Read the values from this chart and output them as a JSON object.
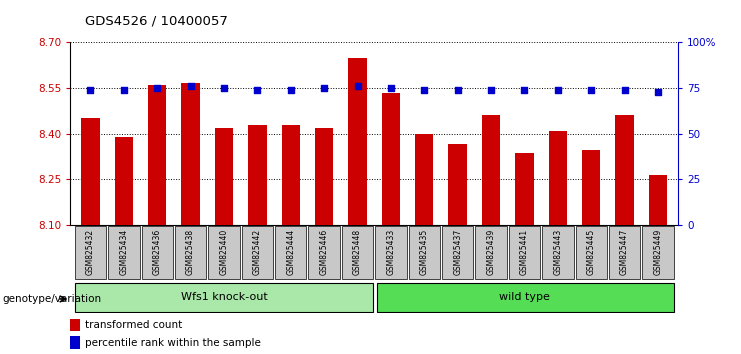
{
  "title": "GDS4526 / 10400057",
  "samples": [
    "GSM825432",
    "GSM825434",
    "GSM825436",
    "GSM825438",
    "GSM825440",
    "GSM825442",
    "GSM825444",
    "GSM825446",
    "GSM825448",
    "GSM825433",
    "GSM825435",
    "GSM825437",
    "GSM825439",
    "GSM825441",
    "GSM825443",
    "GSM825445",
    "GSM825447",
    "GSM825449"
  ],
  "red_values": [
    8.45,
    8.39,
    8.56,
    8.565,
    8.42,
    8.43,
    8.43,
    8.42,
    8.65,
    8.535,
    8.4,
    8.365,
    8.46,
    8.335,
    8.41,
    8.345,
    8.46,
    8.265
  ],
  "blue_values": [
    74,
    74,
    75,
    76,
    75,
    74,
    74,
    75,
    76,
    75,
    74,
    74,
    74,
    74,
    74,
    74,
    74,
    73
  ],
  "ylim_left": [
    8.1,
    8.7
  ],
  "ylim_right": [
    0,
    100
  ],
  "yticks_left": [
    8.1,
    8.25,
    8.4,
    8.55,
    8.7
  ],
  "yticks_right": [
    0,
    25,
    50,
    75,
    100
  ],
  "ytick_labels_right": [
    "0",
    "25",
    "50",
    "75",
    "100%"
  ],
  "group1_label": "Wfs1 knock-out",
  "group2_label": "wild type",
  "group1_count": 9,
  "group2_count": 9,
  "group1_color": "#aae8aa",
  "group2_color": "#55dd55",
  "bar_color": "#CC0000",
  "dot_color": "#0000CC",
  "legend_red": "transformed count",
  "legend_blue": "percentile rank within the sample",
  "ylabel_left_color": "#CC0000",
  "ylabel_right_color": "#0000CC",
  "genotype_label": "genotype/variation",
  "bg_xtick": "#C8C8C8",
  "grid_color": "#000000",
  "bar_width": 0.55
}
